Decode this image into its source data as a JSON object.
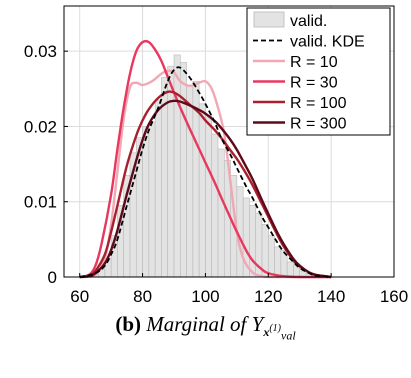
{
  "chart_data": {
    "type": "area",
    "title": "",
    "xlabel": "",
    "ylabel": "",
    "xlim": [
      55,
      160
    ],
    "ylim": [
      0,
      0.036
    ],
    "xticks": [
      60,
      80,
      100,
      120,
      140,
      160
    ],
    "yticks": [
      0,
      0.01,
      0.02,
      0.03
    ],
    "xtick_labels": [
      "60",
      "80",
      "100",
      "120",
      "140",
      "160"
    ],
    "ytick_labels": [
      "0",
      "0.01",
      "0.02",
      "0.03"
    ],
    "grid": true,
    "legend_position": "top-right",
    "histogram": {
      "name": "valid.",
      "bin_width": 2,
      "bin_left_edges": [
        64,
        66,
        68,
        70,
        72,
        74,
        76,
        78,
        80,
        82,
        84,
        86,
        88,
        90,
        92,
        94,
        96,
        98,
        100,
        102,
        104,
        106,
        108,
        110,
        112,
        114,
        116,
        118,
        120,
        122,
        124,
        126,
        128,
        130,
        132,
        134
      ],
      "values": [
        0.0003,
        0.001,
        0.0025,
        0.0055,
        0.0095,
        0.0135,
        0.0165,
        0.0185,
        0.02,
        0.0205,
        0.0235,
        0.0265,
        0.028,
        0.0295,
        0.0285,
        0.0255,
        0.026,
        0.023,
        0.0215,
        0.019,
        0.017,
        0.0155,
        0.0135,
        0.012,
        0.0105,
        0.0095,
        0.0085,
        0.007,
        0.0055,
        0.004,
        0.0035,
        0.002,
        0.0015,
        0.0008,
        0.0005,
        0.0002
      ],
      "color": "#e3e3e3"
    },
    "series": [
      {
        "name": "valid. KDE",
        "style": "dashed",
        "color": "#000000",
        "x": [
          60,
          65,
          68,
          70,
          72,
          75,
          78,
          80,
          82,
          85,
          88,
          90,
          92,
          95,
          98,
          100,
          103,
          105,
          108,
          110,
          113,
          115,
          118,
          120,
          123,
          125,
          128,
          130,
          133,
          135,
          138,
          140
        ],
        "y": [
          0,
          0.0005,
          0.0015,
          0.003,
          0.005,
          0.0095,
          0.014,
          0.017,
          0.0195,
          0.0225,
          0.026,
          0.0275,
          0.0278,
          0.0265,
          0.0245,
          0.023,
          0.0205,
          0.0185,
          0.0162,
          0.0145,
          0.012,
          0.0105,
          0.008,
          0.0066,
          0.0045,
          0.0033,
          0.002,
          0.0012,
          0.0005,
          0.0002,
          5e-05,
          0
        ]
      },
      {
        "name": "R = 10",
        "style": "solid",
        "color": "#f2a8b4",
        "x": [
          60,
          65,
          68,
          70,
          72,
          74,
          76,
          78,
          80,
          83,
          86,
          88,
          90,
          92,
          95,
          98,
          100,
          102,
          104,
          106,
          108,
          110,
          112,
          115,
          118,
          120,
          125,
          130,
          140
        ],
        "y": [
          0,
          0.0003,
          0.0025,
          0.007,
          0.014,
          0.021,
          0.0252,
          0.0258,
          0.0255,
          0.026,
          0.027,
          0.0274,
          0.0272,
          0.026,
          0.0254,
          0.0258,
          0.026,
          0.025,
          0.0225,
          0.019,
          0.0125,
          0.006,
          0.0025,
          0.0006,
          0.0001,
          0,
          0,
          0,
          0
        ]
      },
      {
        "name": "R = 30",
        "style": "solid",
        "color": "#e8385e",
        "x": [
          60,
          63,
          65,
          67,
          70,
          72,
          74,
          76,
          78,
          80,
          82,
          84,
          86,
          88,
          90,
          92,
          95,
          98,
          100,
          103,
          105,
          108,
          110,
          113,
          115,
          118,
          120,
          125,
          130,
          135,
          140
        ],
        "y": [
          0,
          0.0003,
          0.0015,
          0.0045,
          0.011,
          0.017,
          0.0225,
          0.027,
          0.03,
          0.0312,
          0.0312,
          0.0302,
          0.0287,
          0.0266,
          0.0245,
          0.0225,
          0.0197,
          0.017,
          0.0152,
          0.0125,
          0.0106,
          0.0078,
          0.006,
          0.0035,
          0.0022,
          0.001,
          0.0005,
          0.0001,
          0,
          0,
          0
        ]
      },
      {
        "name": "R = 100",
        "style": "solid",
        "color": "#a8202e",
        "x": [
          60,
          63,
          65,
          68,
          70,
          72,
          75,
          78,
          80,
          82,
          85,
          88,
          90,
          92,
          95,
          98,
          100,
          103,
          105,
          108,
          110,
          113,
          115,
          118,
          120,
          123,
          125,
          128,
          130,
          133,
          135,
          138,
          140
        ],
        "y": [
          0,
          0.0002,
          0.0008,
          0.003,
          0.006,
          0.0095,
          0.0148,
          0.0188,
          0.0208,
          0.0223,
          0.0238,
          0.0246,
          0.0245,
          0.024,
          0.0229,
          0.0218,
          0.0208,
          0.0195,
          0.0185,
          0.0168,
          0.0157,
          0.0137,
          0.0122,
          0.0097,
          0.008,
          0.0055,
          0.004,
          0.0022,
          0.0014,
          0.0006,
          0.0003,
          0.0001,
          0
        ]
      },
      {
        "name": "R = 300",
        "style": "solid",
        "color": "#5e0a1a",
        "x": [
          60,
          63,
          65,
          68,
          70,
          72,
          75,
          78,
          80,
          82,
          85,
          88,
          90,
          92,
          95,
          98,
          100,
          103,
          105,
          108,
          110,
          113,
          115,
          118,
          120,
          123,
          125,
          128,
          130,
          133,
          135,
          138,
          140
        ],
        "y": [
          0,
          0.0001,
          0.0005,
          0.0018,
          0.0036,
          0.0062,
          0.011,
          0.0155,
          0.0182,
          0.0203,
          0.0222,
          0.0232,
          0.0234,
          0.0233,
          0.0228,
          0.0222,
          0.0217,
          0.0207,
          0.0198,
          0.0182,
          0.0169,
          0.0146,
          0.013,
          0.0102,
          0.0084,
          0.0058,
          0.0043,
          0.0024,
          0.0015,
          0.0006,
          0.0003,
          0.0001,
          0
        ]
      }
    ],
    "legend": [
      "valid.",
      "valid. KDE",
      "R = 10",
      "R = 30",
      "R = 100",
      "R = 300"
    ]
  },
  "caption": {
    "panel_label": "(b)",
    "text": "Marginal of",
    "variable": "Y",
    "subscript_vector": "x",
    "subscript_superscript": "(1)",
    "subscript_sub": "val"
  }
}
